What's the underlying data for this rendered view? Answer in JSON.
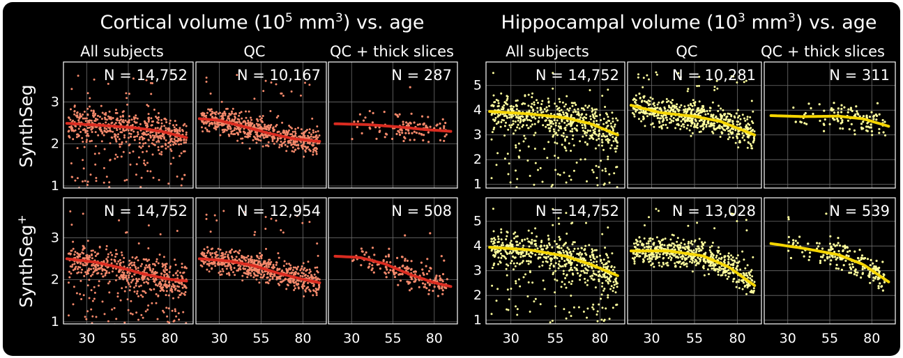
{
  "groups": [
    {
      "title_pre": "Cortical volume (10",
      "title_sup1": "5",
      "title_mid": " mm",
      "title_sup2": "3",
      "title_post": ") vs. age",
      "color": "#f4896b",
      "fit_color": "#d92b20",
      "yticks": [
        1,
        2,
        3
      ],
      "ylim": [
        0.95,
        3.95
      ]
    },
    {
      "title_pre": "Hippocampal volume (10",
      "title_sup1": "3",
      "title_mid": " mm",
      "title_sup2": "3",
      "title_post": ") vs. age",
      "color": "#fdfd9d",
      "fit_color": "#f5d500",
      "yticks": [
        1,
        2,
        3,
        4,
        5
      ],
      "ylim": [
        0.85,
        5.95
      ]
    }
  ],
  "columns": [
    "All subjects",
    "QC",
    "QC + thick slices"
  ],
  "rows": [
    {
      "label": "SynthSeg",
      "sup": ""
    },
    {
      "label": "SynthSeg",
      "sup": "+"
    }
  ],
  "xticks": [
    30,
    55,
    80
  ],
  "xlim": [
    16,
    94
  ],
  "chart_data": [
    {
      "type": "scatter",
      "group": "cortical",
      "method": "SynthSeg",
      "subset": "All subjects",
      "n_label": "N = 14,752",
      "xlim": [
        16,
        94
      ],
      "ylim": [
        0.95,
        3.95
      ],
      "fit": [
        [
          18,
          2.49
        ],
        [
          40,
          2.44
        ],
        [
          60,
          2.38
        ],
        [
          75,
          2.3
        ],
        [
          90,
          2.15
        ]
      ]
    },
    {
      "type": "scatter",
      "group": "cortical",
      "method": "SynthSeg",
      "subset": "QC",
      "n_label": "N = 10,167",
      "xlim": [
        16,
        94
      ],
      "ylim": [
        0.95,
        3.95
      ],
      "fit": [
        [
          18,
          2.6
        ],
        [
          30,
          2.56
        ],
        [
          45,
          2.41
        ],
        [
          60,
          2.25
        ],
        [
          75,
          2.12
        ],
        [
          90,
          2.06
        ]
      ]
    },
    {
      "type": "scatter",
      "group": "cortical",
      "method": "SynthSeg",
      "subset": "QC + thick slices",
      "n_label": "N = 287",
      "xlim": [
        16,
        94
      ],
      "ylim": [
        0.95,
        3.95
      ],
      "fit": [
        [
          20,
          2.48
        ],
        [
          40,
          2.46
        ],
        [
          60,
          2.4
        ],
        [
          75,
          2.34
        ],
        [
          90,
          2.3
        ]
      ]
    },
    {
      "type": "scatter",
      "group": "cortical",
      "method": "SynthSeg+",
      "subset": "All subjects",
      "n_label": "N = 14,752",
      "xlim": [
        16,
        94
      ],
      "ylim": [
        0.95,
        3.95
      ],
      "fit": [
        [
          18,
          2.5
        ],
        [
          35,
          2.42
        ],
        [
          50,
          2.29
        ],
        [
          65,
          2.13
        ],
        [
          80,
          2.01
        ],
        [
          90,
          1.97
        ]
      ]
    },
    {
      "type": "scatter",
      "group": "cortical",
      "method": "SynthSeg+",
      "subset": "QC",
      "n_label": "N = 12,954",
      "xlim": [
        16,
        94
      ],
      "ylim": [
        0.95,
        3.95
      ],
      "fit": [
        [
          18,
          2.5
        ],
        [
          35,
          2.45
        ],
        [
          50,
          2.34
        ],
        [
          65,
          2.16
        ],
        [
          80,
          2.01
        ],
        [
          90,
          1.93
        ]
      ]
    },
    {
      "type": "scatter",
      "group": "cortical",
      "method": "SynthSeg+",
      "subset": "QC + thick slices",
      "n_label": "N = 508",
      "xlim": [
        16,
        94
      ],
      "ylim": [
        0.95,
        3.95
      ],
      "fit": [
        [
          20,
          2.56
        ],
        [
          35,
          2.53
        ],
        [
          50,
          2.38
        ],
        [
          65,
          2.13
        ],
        [
          80,
          1.93
        ],
        [
          90,
          1.84
        ]
      ]
    },
    {
      "type": "scatter",
      "group": "hippocampal",
      "method": "SynthSeg",
      "subset": "All subjects",
      "n_label": "N = 14,752",
      "xlim": [
        16,
        94
      ],
      "ylim": [
        0.85,
        5.95
      ],
      "fit": [
        [
          18,
          3.95
        ],
        [
          40,
          3.85
        ],
        [
          60,
          3.7
        ],
        [
          75,
          3.45
        ],
        [
          90,
          3.0
        ]
      ]
    },
    {
      "type": "scatter",
      "group": "hippocampal",
      "method": "SynthSeg",
      "subset": "QC",
      "n_label": "N = 10,281",
      "xlim": [
        16,
        94
      ],
      "ylim": [
        0.85,
        5.95
      ],
      "fit": [
        [
          18,
          4.2
        ],
        [
          35,
          3.9
        ],
        [
          55,
          3.75
        ],
        [
          70,
          3.55
        ],
        [
          90,
          3.0
        ]
      ]
    },
    {
      "type": "scatter",
      "group": "hippocampal",
      "method": "SynthSeg",
      "subset": "QC + thick slices",
      "n_label": "N = 311",
      "xlim": [
        16,
        94
      ],
      "ylim": [
        0.85,
        5.95
      ],
      "fit": [
        [
          20,
          3.78
        ],
        [
          40,
          3.74
        ],
        [
          60,
          3.76
        ],
        [
          75,
          3.65
        ],
        [
          90,
          3.35
        ]
      ]
    },
    {
      "type": "scatter",
      "group": "hippocampal",
      "method": "SynthSeg+",
      "subset": "All subjects",
      "n_label": "N = 14,752",
      "xlim": [
        16,
        94
      ],
      "ylim": [
        0.85,
        5.95
      ],
      "fit": [
        [
          18,
          3.95
        ],
        [
          40,
          3.85
        ],
        [
          60,
          3.6
        ],
        [
          75,
          3.25
        ],
        [
          90,
          2.8
        ]
      ]
    },
    {
      "type": "scatter",
      "group": "hippocampal",
      "method": "SynthSeg+",
      "subset": "QC",
      "n_label": "N = 13,028",
      "xlim": [
        16,
        94
      ],
      "ylim": [
        0.85,
        5.95
      ],
      "fit": [
        [
          18,
          3.8
        ],
        [
          40,
          3.8
        ],
        [
          60,
          3.6
        ],
        [
          75,
          3.15
        ],
        [
          90,
          2.4
        ]
      ]
    },
    {
      "type": "scatter",
      "group": "hippocampal",
      "method": "SynthSeg+",
      "subset": "QC + thick slices",
      "n_label": "N = 539",
      "xlim": [
        16,
        94
      ],
      "ylim": [
        0.85,
        5.95
      ],
      "fit": [
        [
          20,
          4.1
        ],
        [
          40,
          3.9
        ],
        [
          60,
          3.65
        ],
        [
          75,
          3.25
        ],
        [
          90,
          2.55
        ]
      ]
    }
  ]
}
